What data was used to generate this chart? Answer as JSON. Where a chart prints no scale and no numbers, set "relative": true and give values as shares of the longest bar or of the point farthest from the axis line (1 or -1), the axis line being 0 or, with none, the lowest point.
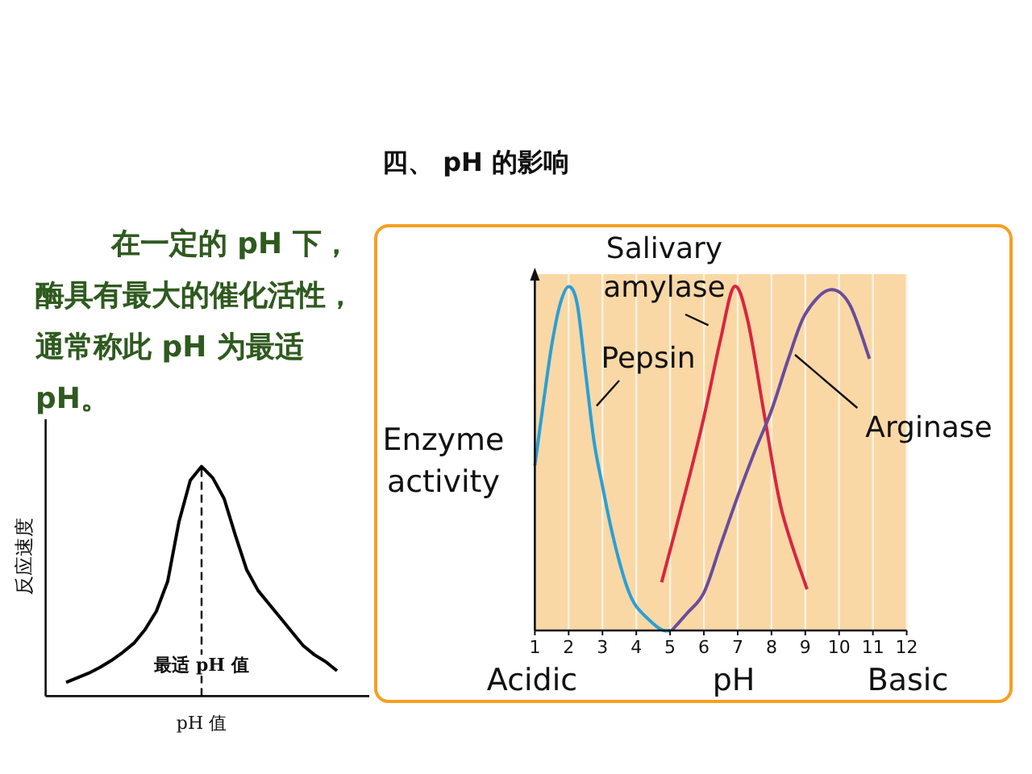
{
  "chart_data": [
    {
      "type": "other",
      "title": "四、 pH 的影响",
      "annotations": [
        "在一定的 pH 下，酶具有最大的催化活性，通常称此 pH 为最适 pH。"
      ]
    },
    {
      "type": "line",
      "relative": true,
      "categories": [
        null,
        null,
        null,
        null,
        null,
        null,
        null,
        null,
        null,
        null,
        null,
        null,
        null,
        null,
        null,
        null,
        null,
        null,
        null,
        null,
        null,
        null,
        null,
        null,
        null
      ],
      "xlabel": "pH 值",
      "ylabel": "反应速度",
      "series": [
        {
          "color": "#000000",
          "values": [
            0.06,
            0.08,
            0.1,
            0.125,
            0.155,
            0.19,
            0.23,
            0.29,
            0.37,
            0.5,
            0.76,
            0.94,
            1.0,
            0.95,
            0.86,
            0.7,
            0.55,
            0.46,
            0.4,
            0.34,
            0.28,
            0.22,
            0.18,
            0.15,
            0.11
          ]
        }
      ],
      "annotations": [
        "最适 pH 值"
      ]
    },
    {
      "type": "line",
      "relative": true,
      "xlim": [
        1,
        12
      ],
      "xticks": [
        1,
        2,
        3,
        4,
        5,
        6,
        7,
        8,
        9,
        10,
        11,
        12
      ],
      "grid": "x",
      "xlabel": "pH",
      "ylabel": "Enzyme activity",
      "annotations": [
        "Acidic",
        "Basic"
      ],
      "series": [
        {
          "name": "Pepsin",
          "color": "#2a9fd6",
          "x": [
            1,
            1.25,
            1.5,
            1.75,
            2,
            2.25,
            2.5,
            2.75,
            3,
            3.25,
            3.5,
            3.75,
            4,
            4.5,
            4.8,
            5
          ],
          "values": [
            0.48,
            0.66,
            0.83,
            0.95,
            1.0,
            0.95,
            0.75,
            0.55,
            0.42,
            0.3,
            0.2,
            0.12,
            0.07,
            0.02,
            0,
            0
          ]
        },
        {
          "name": "Salivary amylase",
          "color": "#d9253f",
          "x": [
            4.75,
            5.5,
            6,
            6.5,
            6.9,
            7.3,
            7.8,
            8.3,
            9.05
          ],
          "values": [
            0.14,
            0.42,
            0.62,
            0.85,
            1.0,
            0.9,
            0.62,
            0.35,
            0.12
          ]
        },
        {
          "name": "Arginase",
          "color": "#6a4c9c",
          "x": [
            5.05,
            5.5,
            6,
            6.5,
            7,
            7.5,
            8,
            8.5,
            9,
            9.7,
            10.3,
            10.9
          ],
          "values": [
            0,
            0.05,
            0.11,
            0.25,
            0.39,
            0.52,
            0.64,
            0.79,
            0.92,
            0.99,
            0.95,
            0.79
          ]
        }
      ]
    }
  ]
}
